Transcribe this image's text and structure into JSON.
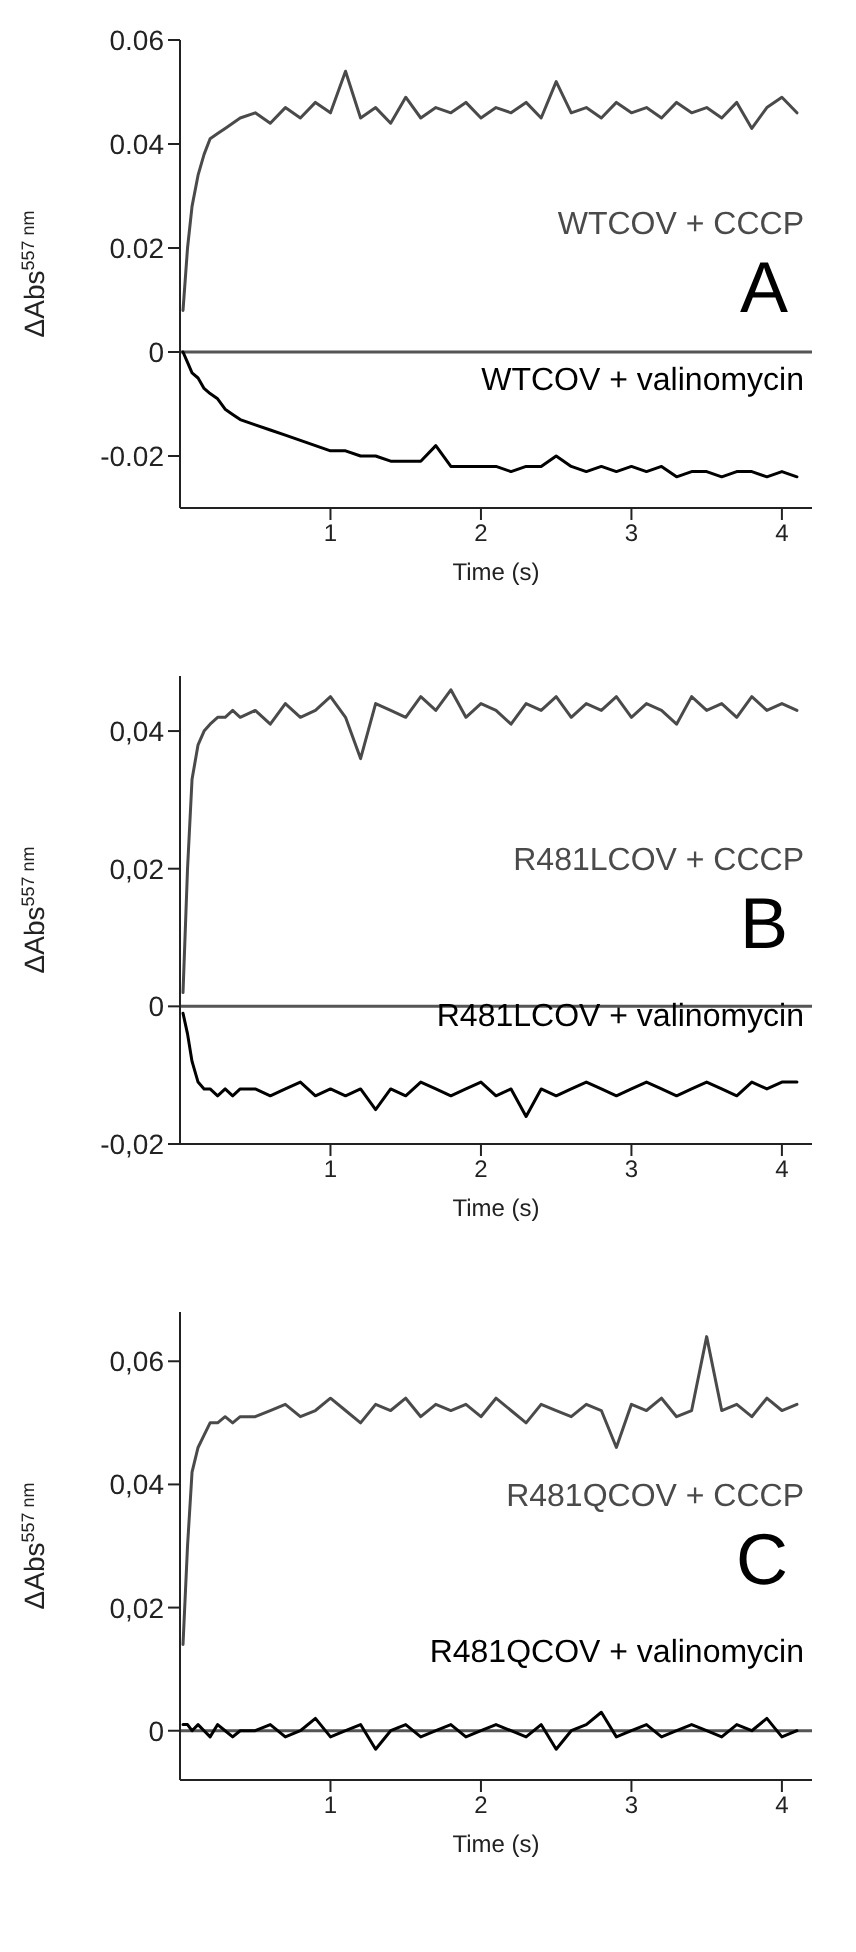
{
  "chart_data": [
    {
      "type": "line",
      "ylabel": "ΔAbs$^{557 nm}$",
      "xlabel": "Time (s)",
      "annotations": [
        "A"
      ],
      "xlim": [
        0,
        4.2
      ],
      "xticks": [
        1,
        2,
        3,
        4
      ],
      "ylim": [
        -0.03,
        0.06
      ],
      "yticks": [
        -0.02,
        0,
        0.02,
        0.04,
        0.06
      ],
      "marker": "none",
      "line_style": "solid",
      "ref_lines": [
        {
          "axis": "y",
          "value": 0,
          "color": "#555555"
        }
      ],
      "x": [
        0.02,
        0.05,
        0.08,
        0.12,
        0.16,
        0.2,
        0.25,
        0.3,
        0.35,
        0.4,
        0.5,
        0.6,
        0.7,
        0.8,
        0.9,
        1.0,
        1.1,
        1.2,
        1.3,
        1.4,
        1.5,
        1.6,
        1.7,
        1.8,
        1.9,
        2.0,
        2.1,
        2.2,
        2.3,
        2.4,
        2.5,
        2.6,
        2.7,
        2.8,
        2.9,
        3.0,
        3.1,
        3.2,
        3.3,
        3.4,
        3.5,
        3.6,
        3.7,
        3.8,
        3.9,
        4.0,
        4.1
      ],
      "series": [
        {
          "name": "WTCOV + CCCP",
          "color": "#4a4a4a",
          "values": [
            0.008,
            0.02,
            0.028,
            0.034,
            0.038,
            0.041,
            0.042,
            0.043,
            0.044,
            0.045,
            0.046,
            0.044,
            0.047,
            0.045,
            0.048,
            0.046,
            0.054,
            0.045,
            0.047,
            0.044,
            0.049,
            0.045,
            0.047,
            0.046,
            0.048,
            0.045,
            0.047,
            0.046,
            0.048,
            0.045,
            0.052,
            0.046,
            0.047,
            0.045,
            0.048,
            0.046,
            0.047,
            0.045,
            0.048,
            0.046,
            0.047,
            0.045,
            0.048,
            0.043,
            0.047,
            0.049,
            0.046
          ]
        },
        {
          "name": "WTCOV + valinomycin",
          "color": "#000000",
          "values": [
            0,
            -0.002,
            -0.004,
            -0.005,
            -0.007,
            -0.008,
            -0.009,
            -0.011,
            -0.012,
            -0.013,
            -0.014,
            -0.015,
            -0.016,
            -0.017,
            -0.018,
            -0.019,
            -0.019,
            -0.02,
            -0.02,
            -0.021,
            -0.021,
            -0.021,
            -0.018,
            -0.022,
            -0.022,
            -0.022,
            -0.022,
            -0.023,
            -0.022,
            -0.022,
            -0.02,
            -0.022,
            -0.023,
            -0.022,
            -0.023,
            -0.022,
            -0.023,
            -0.022,
            -0.024,
            -0.023,
            -0.023,
            -0.024,
            -0.023,
            -0.023,
            -0.024,
            -0.023,
            -0.024
          ]
        }
      ]
    },
    {
      "type": "line",
      "ylabel": "ΔAbs$^{557 nm}$",
      "xlabel": "Time (s)",
      "annotations": [
        "B"
      ],
      "xlim": [
        0,
        4.2
      ],
      "xticks": [
        1,
        2,
        3,
        4
      ],
      "ylim": [
        -0.02,
        0.048
      ],
      "yticks": [
        {
          "value": -0.02,
          "label": "-0,02"
        },
        0,
        {
          "value": 0.02,
          "label": "0,02"
        },
        {
          "value": 0.04,
          "label": "0,04"
        }
      ],
      "marker": "none",
      "line_style": "solid",
      "ref_lines": [
        {
          "axis": "y",
          "value": 0,
          "color": "#555555"
        }
      ],
      "x": [
        0.02,
        0.05,
        0.08,
        0.12,
        0.16,
        0.2,
        0.25,
        0.3,
        0.35,
        0.4,
        0.5,
        0.6,
        0.7,
        0.8,
        0.9,
        1.0,
        1.1,
        1.2,
        1.3,
        1.4,
        1.5,
        1.6,
        1.7,
        1.8,
        1.9,
        2.0,
        2.1,
        2.2,
        2.3,
        2.4,
        2.5,
        2.6,
        2.7,
        2.8,
        2.9,
        3.0,
        3.1,
        3.2,
        3.3,
        3.4,
        3.5,
        3.6,
        3.7,
        3.8,
        3.9,
        4.0,
        4.1
      ],
      "series": [
        {
          "name": "R481LCOV + CCCP",
          "color": "#4a4a4a",
          "values": [
            0.002,
            0.02,
            0.033,
            0.038,
            0.04,
            0.041,
            0.042,
            0.042,
            0.043,
            0.042,
            0.043,
            0.041,
            0.044,
            0.042,
            0.043,
            0.045,
            0.042,
            0.036,
            0.044,
            0.043,
            0.042,
            0.045,
            0.043,
            0.046,
            0.042,
            0.044,
            0.043,
            0.041,
            0.044,
            0.043,
            0.045,
            0.042,
            0.044,
            0.043,
            0.045,
            0.042,
            0.044,
            0.043,
            0.041,
            0.045,
            0.043,
            0.044,
            0.042,
            0.045,
            0.043,
            0.044,
            0.043
          ]
        },
        {
          "name": "R481LCOV + valinomycin",
          "color": "#000000",
          "values": [
            -0.001,
            -0.004,
            -0.008,
            -0.011,
            -0.012,
            -0.012,
            -0.013,
            -0.012,
            -0.013,
            -0.012,
            -0.012,
            -0.013,
            -0.012,
            -0.011,
            -0.013,
            -0.012,
            -0.013,
            -0.012,
            -0.015,
            -0.012,
            -0.013,
            -0.011,
            -0.012,
            -0.013,
            -0.012,
            -0.011,
            -0.013,
            -0.012,
            -0.016,
            -0.012,
            -0.013,
            -0.012,
            -0.011,
            -0.012,
            -0.013,
            -0.012,
            -0.011,
            -0.012,
            -0.013,
            -0.012,
            -0.011,
            -0.012,
            -0.013,
            -0.011,
            -0.012,
            -0.011,
            -0.011
          ]
        }
      ]
    },
    {
      "type": "line",
      "ylabel": "ΔAbs$^{557 nm}$",
      "xlabel": "Time (s)",
      "annotations": [
        "C"
      ],
      "xlim": [
        0,
        4.2
      ],
      "xticks": [
        1,
        2,
        3,
        4
      ],
      "ylim": [
        -0.008,
        0.068
      ],
      "yticks": [
        0,
        {
          "value": 0.02,
          "label": "0,02"
        },
        {
          "value": 0.04,
          "label": "0,04"
        },
        {
          "value": 0.06,
          "label": "0,06"
        }
      ],
      "marker": "none",
      "line_style": "solid",
      "ref_lines": [
        {
          "axis": "y",
          "value": 0,
          "color": "#555555"
        }
      ],
      "x": [
        0.02,
        0.05,
        0.08,
        0.12,
        0.16,
        0.2,
        0.25,
        0.3,
        0.35,
        0.4,
        0.5,
        0.6,
        0.7,
        0.8,
        0.9,
        1.0,
        1.1,
        1.2,
        1.3,
        1.4,
        1.5,
        1.6,
        1.7,
        1.8,
        1.9,
        2.0,
        2.1,
        2.2,
        2.3,
        2.4,
        2.5,
        2.6,
        2.7,
        2.8,
        2.9,
        3.0,
        3.1,
        3.2,
        3.3,
        3.4,
        3.5,
        3.6,
        3.7,
        3.8,
        3.9,
        4.0,
        4.1
      ],
      "series": [
        {
          "name": "R481QCOV + CCCP",
          "color": "#4a4a4a",
          "values": [
            0.014,
            0.03,
            0.042,
            0.046,
            0.048,
            0.05,
            0.05,
            0.051,
            0.05,
            0.051,
            0.051,
            0.052,
            0.053,
            0.051,
            0.052,
            0.054,
            0.052,
            0.05,
            0.053,
            0.052,
            0.054,
            0.051,
            0.053,
            0.052,
            0.053,
            0.051,
            0.054,
            0.052,
            0.05,
            0.053,
            0.052,
            0.051,
            0.053,
            0.052,
            0.046,
            0.053,
            0.052,
            0.054,
            0.051,
            0.052,
            0.064,
            0.052,
            0.053,
            0.051,
            0.054,
            0.052,
            0.053
          ]
        },
        {
          "name": "R481QCOV + valinomycin",
          "color": "#000000",
          "values": [
            0.001,
            0.001,
            0,
            0.001,
            0,
            -0.001,
            0.001,
            0,
            -0.001,
            0,
            0,
            0.001,
            -0.001,
            0,
            0.002,
            -0.001,
            0,
            0.001,
            -0.003,
            0,
            0.001,
            -0.001,
            0,
            0.001,
            -0.001,
            0,
            0.001,
            0,
            -0.001,
            0.001,
            -0.003,
            0,
            0.001,
            0.003,
            -0.001,
            0,
            0.001,
            -0.001,
            0,
            0.001,
            0,
            -0.001,
            0.001,
            0,
            0.002,
            -0.001,
            0
          ]
        }
      ]
    }
  ]
}
